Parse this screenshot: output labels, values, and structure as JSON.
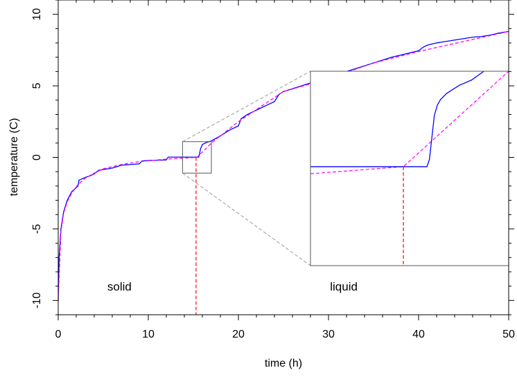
{
  "chart_data": {
    "type": "line",
    "title": "",
    "xlabel": "time (h)",
    "ylabel": "temperature (C)",
    "xlim": [
      0,
      50
    ],
    "ylim": [
      -11,
      11
    ],
    "xticks": [
      0,
      10,
      20,
      30,
      40,
      50
    ],
    "yticks": [
      -10,
      -5,
      0,
      5,
      10
    ],
    "series": [
      {
        "color": "#0000ff",
        "style": "solid",
        "x": [
          0,
          0.1,
          0.3,
          0.6,
          1,
          1.5,
          2.2,
          2.3,
          3,
          3.5,
          4,
          4.5,
          5,
          6,
          7,
          8,
          9,
          9.3,
          10,
          11,
          12,
          12.2,
          13,
          14,
          15,
          15.6,
          15.8,
          16,
          16.5,
          17,
          18,
          19,
          20,
          20.3,
          21,
          22,
          23,
          24,
          24.5,
          25,
          26,
          27,
          28,
          29,
          30,
          31,
          32,
          33,
          34,
          35,
          36,
          37,
          38,
          39,
          40,
          40.5,
          41,
          42,
          43,
          44,
          45,
          46,
          47,
          48,
          49,
          50
        ],
        "y": [
          -10,
          -7,
          -5,
          -3.8,
          -3,
          -2.4,
          -2,
          -1.6,
          -1.4,
          -1.3,
          -1.15,
          -0.9,
          -0.85,
          -0.75,
          -0.55,
          -0.5,
          -0.45,
          -0.25,
          -0.22,
          -0.2,
          -0.18,
          0.02,
          0.02,
          0.02,
          0.02,
          0.02,
          0.6,
          0.9,
          1.05,
          1.15,
          1.5,
          1.9,
          2.2,
          2.7,
          3,
          3.3,
          3.6,
          3.9,
          4.4,
          4.6,
          4.8,
          5.0,
          5.2,
          5.4,
          5.6,
          5.85,
          6.0,
          6.2,
          6.4,
          6.6,
          6.8,
          7.0,
          7.15,
          7.3,
          7.45,
          7.7,
          7.85,
          8.0,
          8.1,
          8.2,
          8.3,
          8.4,
          8.45,
          8.55,
          8.7,
          8.8
        ]
      },
      {
        "color": "#ff00ff",
        "style": "dashed",
        "x": [
          0,
          0.3,
          0.6,
          1,
          1.5,
          2.2,
          3,
          4,
          5,
          7,
          9,
          12,
          15.4,
          17,
          20,
          25,
          30,
          35,
          40,
          45,
          50
        ],
        "y": [
          -10,
          -5.2,
          -3.9,
          -3.1,
          -2.5,
          -1.9,
          -1.45,
          -1.1,
          -0.8,
          -0.5,
          -0.3,
          -0.12,
          0.0,
          1.0,
          2.5,
          4.6,
          5.5,
          6.6,
          7.4,
          8.1,
          8.8
        ]
      }
    ],
    "marker_line": {
      "x": 15.3,
      "y": 0.0,
      "color": "#ff0000"
    },
    "zoom_box": {
      "xlim": [
        13.8,
        17
      ],
      "ylim": [
        -1.1,
        1.1
      ]
    },
    "zoom_inset": {
      "data_xlim": [
        13.8,
        17
      ],
      "data_ylim": [
        -1.1,
        1.1
      ],
      "blue": {
        "x": [
          13.8,
          14.5,
          15.0,
          15.5,
          15.68,
          15.72,
          15.76,
          15.8,
          15.85,
          15.9,
          16.0,
          16.2,
          16.4,
          16.6
        ],
        "y": [
          0.02,
          0.02,
          0.02,
          0.02,
          0.02,
          0.1,
          0.35,
          0.6,
          0.72,
          0.78,
          0.85,
          0.94,
          1.0,
          1.1
        ]
      },
      "magenta": {
        "x": [
          13.8,
          15.3,
          17
        ],
        "y": [
          -0.06,
          0.02,
          1.1
        ]
      },
      "marker_x": 15.3
    },
    "annotations": [
      {
        "text": "solid",
        "x": 6.8,
        "y": -9.3
      },
      {
        "text": "liquid",
        "x": 31.7,
        "y": -9.3
      }
    ]
  }
}
